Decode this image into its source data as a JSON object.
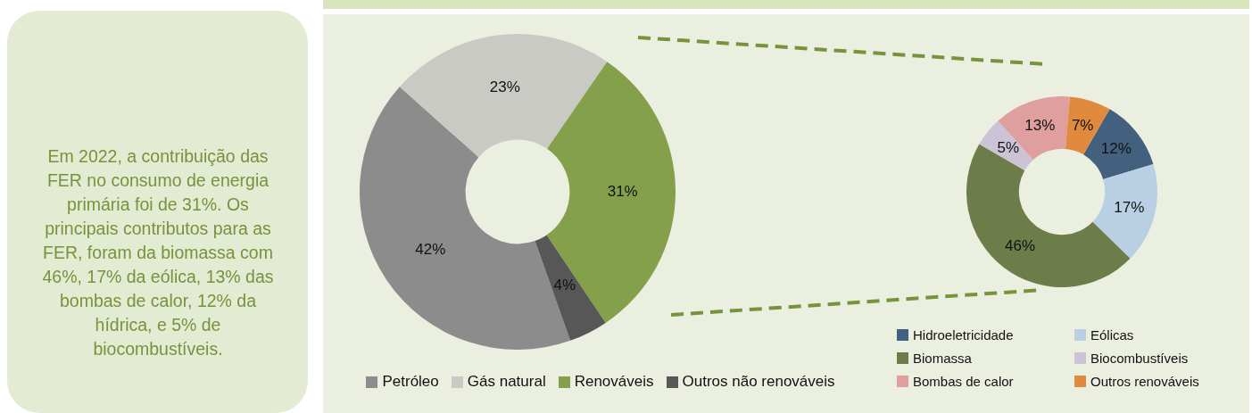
{
  "chart_data": [
    {
      "type": "other",
      "annotations": [
        "Em 2022, a contribuição das FER no consumo de energia primária foi de 31%.  Os principais contributos para as FER, foram da biomassa com 46%, 17% da eólica, 13% das bombas de calor, 12% da hídrica, e 5% de biocombustíveis."
      ]
    },
    {
      "type": "donut",
      "categories": [
        "Petróleo",
        "Gás natural",
        "Renováveis",
        "Outros não renováveis"
      ],
      "values": [
        42,
        23,
        31,
        4
      ],
      "colors": [
        "#8c8c8c",
        "#cacac5",
        "#84a04a",
        "#575757"
      ],
      "value_labels": [
        "42%",
        "23%",
        "31%",
        "4%"
      ],
      "legend": "bottom"
    },
    {
      "type": "donut",
      "categories": [
        "Hidroeletricidade",
        "Eólicas",
        "Biomassa",
        "Biocombustíveis",
        "Bombas de calor",
        "Outros renováveis"
      ],
      "values": [
        12,
        17,
        46,
        5,
        13,
        7
      ],
      "colors": [
        "#44607f",
        "#b9cfe4",
        "#6d7d4a",
        "#cdc3d6",
        "#df9f9e",
        "#df8a3c"
      ],
      "value_labels": [
        "12%",
        "17%",
        "46%",
        "5%",
        "13%",
        "7%"
      ],
      "legend": "bottom"
    }
  ]
}
